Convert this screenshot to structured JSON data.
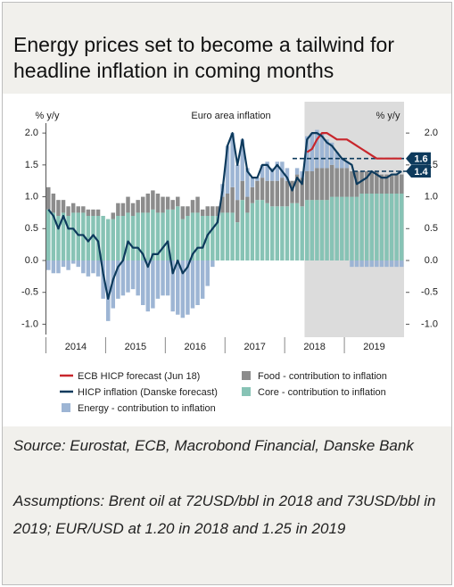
{
  "chart_data": {
    "type": "bar",
    "title": "Energy prices set to become a tailwind for headline inflation in coming months",
    "subtitle": "Euro area inflation",
    "ylabel": "% y/y",
    "y2label": "% y/y",
    "source": "Source: Eurostat, ECB, Macrobond Financial, Danske Bank",
    "assumptions": "Assumptions: Brent oil at 72USD/bbl in 2018 and 73USD/bbl in 2019; EUR/USD at 1.20 in 2018 and 1.25 in 2019",
    "categories": [
      null,
      null,
      null,
      null,
      null,
      null,
      "2014",
      null,
      null,
      null,
      null,
      null,
      null,
      null,
      null,
      null,
      null,
      null,
      "2015",
      null,
      null,
      null,
      null,
      null,
      null,
      null,
      null,
      null,
      null,
      null,
      "2016",
      null,
      null,
      null,
      null,
      null,
      null,
      null,
      null,
      null,
      null,
      null,
      "2017",
      null,
      null,
      null,
      null,
      null,
      null,
      null,
      null,
      null,
      null,
      null,
      "2018",
      null,
      null,
      null,
      null,
      null,
      null,
      null,
      null,
      null,
      null,
      null,
      "2019",
      null,
      null,
      null,
      null,
      null
    ],
    "ylim": [
      -1.05,
      2.1
    ],
    "yticks": [
      {
        "value": 2,
        "label": "2.0"
      },
      1.5,
      {
        "value": 1,
        "label": "1.0"
      },
      0.5,
      {
        "value": 0,
        "label": "0.0"
      },
      -0.5,
      {
        "value": -1,
        "label": "-1.0"
      }
    ],
    "y2lim": [
      -1.05,
      2.1
    ],
    "y2ticks": [
      {
        "value": 2,
        "label": "2.0"
      },
      1.5,
      {
        "value": 1,
        "label": "1.0"
      },
      0.5,
      {
        "value": 0,
        "label": "0.0"
      },
      -0.5,
      {
        "value": -1,
        "label": "-1.0"
      }
    ],
    "reference_lines": [
      1.6,
      1.4
    ],
    "grid": false,
    "forecast_shading": true,
    "series": [
      {
        "name": "ECB HICP forecast (Jun 18)",
        "kind": "line",
        "color": "#c8262c",
        "values": [
          null,
          null,
          null,
          null,
          null,
          null,
          null,
          null,
          null,
          null,
          null,
          null,
          null,
          null,
          null,
          null,
          null,
          null,
          null,
          null,
          null,
          null,
          null,
          null,
          null,
          null,
          null,
          null,
          null,
          null,
          null,
          null,
          null,
          null,
          null,
          null,
          null,
          null,
          null,
          null,
          null,
          null,
          null,
          null,
          null,
          null,
          null,
          null,
          null,
          null,
          null,
          null,
          1.7,
          1.75,
          1.9,
          2.0,
          2.0,
          1.95,
          1.9,
          1.9,
          1.9,
          1.85,
          1.8,
          1.75,
          1.7,
          1.65,
          1.6,
          1.6,
          1.6,
          1.6,
          1.6,
          1.6
        ]
      },
      {
        "name": "HICP inflation (Danske forecast)",
        "kind": "line",
        "color": "#0d3a5c",
        "values": [
          0.8,
          0.7,
          0.5,
          0.7,
          0.5,
          0.5,
          0.4,
          0.4,
          0.3,
          0.4,
          0.3,
          -0.2,
          -0.6,
          -0.3,
          -0.1,
          0.0,
          0.3,
          0.2,
          0.2,
          0.1,
          -0.1,
          0.1,
          0.1,
          0.2,
          0.3,
          -0.2,
          0.0,
          -0.2,
          -0.1,
          0.1,
          0.2,
          0.2,
          0.4,
          0.5,
          0.6,
          1.1,
          1.8,
          2.0,
          1.5,
          1.9,
          1.4,
          1.3,
          1.3,
          1.5,
          1.5,
          1.4,
          1.5,
          1.4,
          1.3,
          1.1,
          1.3,
          1.2,
          1.9,
          2.0,
          2.0,
          1.95,
          1.85,
          1.8,
          1.7,
          1.6,
          1.55,
          1.5,
          1.2,
          1.25,
          1.3,
          1.4,
          1.35,
          1.3,
          1.3,
          1.35,
          1.35,
          1.4
        ]
      },
      {
        "name": "Energy - contribution to inflation",
        "kind": "bar",
        "color": "#9db5d4",
        "values": [
          -0.15,
          -0.2,
          -0.2,
          -0.1,
          -0.15,
          -0.05,
          -0.1,
          -0.2,
          -0.25,
          -0.2,
          -0.25,
          -0.6,
          -0.95,
          -0.75,
          -0.6,
          -0.55,
          -0.5,
          -0.45,
          -0.55,
          -0.7,
          -0.8,
          -0.75,
          -0.6,
          -0.55,
          -0.55,
          -0.8,
          -0.85,
          -0.9,
          -0.85,
          -0.75,
          -0.7,
          -0.6,
          -0.4,
          -0.1,
          0.0,
          0.2,
          0.75,
          0.85,
          0.55,
          0.65,
          0.45,
          0.15,
          0.05,
          0.2,
          0.3,
          0.2,
          0.3,
          0.25,
          0.2,
          0.0,
          0.1,
          0.1,
          0.55,
          0.6,
          0.6,
          0.55,
          0.45,
          0.35,
          0.25,
          0.15,
          0.1,
          -0.1,
          -0.1,
          -0.1,
          -0.1,
          -0.1,
          -0.1,
          -0.1,
          -0.1,
          -0.1,
          -0.1,
          -0.1
        ]
      },
      {
        "name": "Food - contribution to inflation",
        "kind": "bar",
        "color": "#8c8c8c",
        "values": [
          0.35,
          0.3,
          0.25,
          0.2,
          0.15,
          0.15,
          0.1,
          0.1,
          0.1,
          0.1,
          0.1,
          0.0,
          0.0,
          0.1,
          0.2,
          0.2,
          0.25,
          0.2,
          0.2,
          0.25,
          0.3,
          0.3,
          0.3,
          0.25,
          0.2,
          0.15,
          0.15,
          0.2,
          0.15,
          0.2,
          0.25,
          0.1,
          0.15,
          0.15,
          0.15,
          0.25,
          0.3,
          0.4,
          0.35,
          0.3,
          0.25,
          0.25,
          0.3,
          0.35,
          0.35,
          0.4,
          0.4,
          0.45,
          0.4,
          0.35,
          0.45,
          0.45,
          0.45,
          0.45,
          0.5,
          0.5,
          0.5,
          0.5,
          0.45,
          0.45,
          0.45,
          0.4,
          0.4,
          0.35,
          0.35,
          0.35,
          0.35,
          0.3,
          0.3,
          0.3,
          0.3,
          0.3
        ]
      },
      {
        "name": "Core - contribution to inflation",
        "kind": "bar",
        "color": "#87c3b5",
        "values": [
          0.8,
          0.75,
          0.7,
          0.75,
          0.7,
          0.75,
          0.75,
          0.75,
          0.7,
          0.7,
          0.7,
          0.7,
          0.65,
          0.65,
          0.7,
          0.7,
          0.75,
          0.7,
          0.75,
          0.75,
          0.75,
          0.8,
          0.75,
          0.75,
          0.8,
          0.8,
          0.85,
          0.65,
          0.7,
          0.75,
          0.75,
          0.7,
          0.7,
          0.7,
          0.7,
          0.75,
          0.75,
          0.75,
          0.6,
          0.95,
          0.75,
          0.9,
          0.95,
          0.95,
          0.9,
          0.85,
          0.85,
          0.85,
          0.85,
          0.9,
          0.9,
          0.85,
          0.95,
          0.95,
          0.95,
          0.95,
          0.95,
          1.0,
          1.0,
          1.0,
          1.0,
          1.0,
          1.0,
          1.05,
          1.05,
          1.05,
          1.05,
          1.05,
          1.05,
          1.05,
          1.05,
          1.05
        ]
      }
    ]
  }
}
